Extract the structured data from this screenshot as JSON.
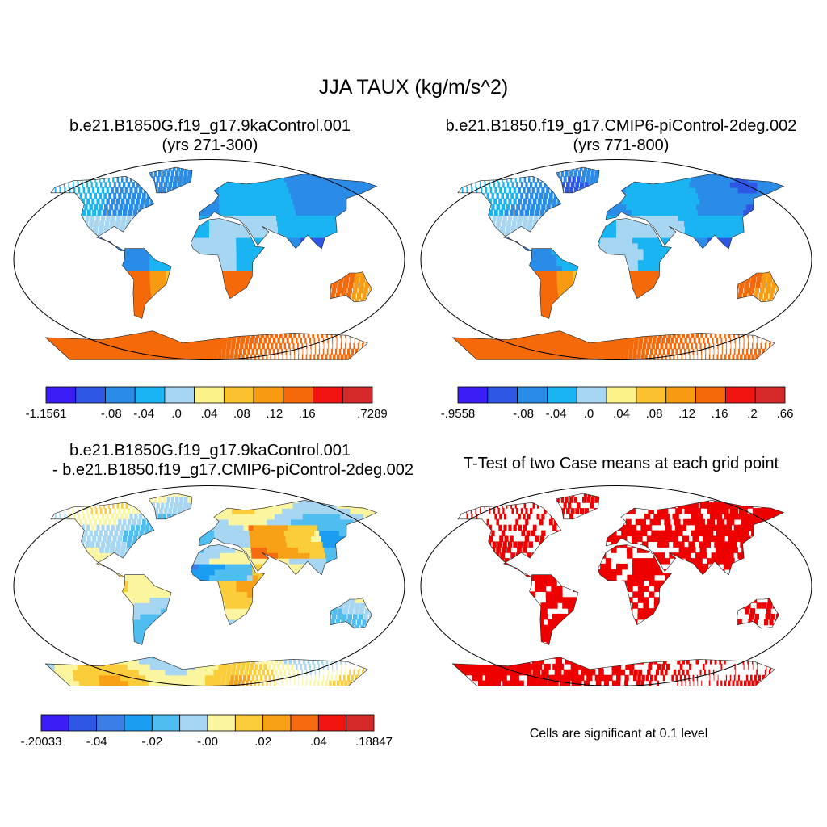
{
  "title": "JJA TAUX (kg/m/s^2)",
  "panels": [
    {
      "title_line1": "b.e21.B1850G.f19_g17.9kaControl.001",
      "title_line2": "(yrs 271-300)"
    },
    {
      "title_line1": "b.e21.B1850.f19_g17.CMIP6-piControl-2deg.002",
      "title_line2": "(yrs 771-800)"
    },
    {
      "title_line1": "b.e21.B1850G.f19_g17.9kaControl.001",
      "title_line2": "- b.e21.B1850.f19_g17.CMIP6-piControl-2deg.002"
    },
    {
      "title_line1": "T-Test of two Case means at each grid point",
      "title_line2": ""
    }
  ],
  "colorbars": [
    {
      "colors": [
        "#3a1ef5",
        "#2f57e6",
        "#2b8ce8",
        "#1bb4f2",
        "#a6d6f2",
        "#fbf28a",
        "#fbc12e",
        "#f89a12",
        "#f46a0a",
        "#f21410",
        "#d62a2a"
      ],
      "labels": [
        "-1.1561",
        "",
        "-.08",
        "-.04",
        ".0",
        ".04",
        ".08",
        ".12",
        ".16",
        "",
        ".7289"
      ]
    },
    {
      "colors": [
        "#3a1ef5",
        "#2f57e6",
        "#2b8ce8",
        "#1bb4f2",
        "#a6d6f2",
        "#fbf28a",
        "#fbc12e",
        "#f89a12",
        "#f46a0a",
        "#f21410",
        "#d62a2a"
      ],
      "labels": [
        "-.9558",
        "",
        "-.08",
        "-.04",
        ".0",
        ".04",
        ".08",
        ".12",
        ".16",
        ".2",
        ".66"
      ]
    },
    {
      "colors": [
        "#3a1ef5",
        "#2f57e6",
        "#3b7ee8",
        "#1b9ef2",
        "#4fbdf0",
        "#a6d6f2",
        "#fbf5a0",
        "#fbcd3a",
        "#f8a016",
        "#f66a10",
        "#f21410",
        "#d62a2a"
      ],
      "labels": [
        "-.20033",
        "",
        "-.04",
        "",
        "-.02",
        "",
        "-.00",
        "",
        ".02",
        "",
        ".04",
        "",
        ".18847"
      ]
    }
  ],
  "ttest_note": "Cells are significant at 0.1 level",
  "colors": {
    "significant": "#ee0000",
    "land_outline": "#222222"
  }
}
